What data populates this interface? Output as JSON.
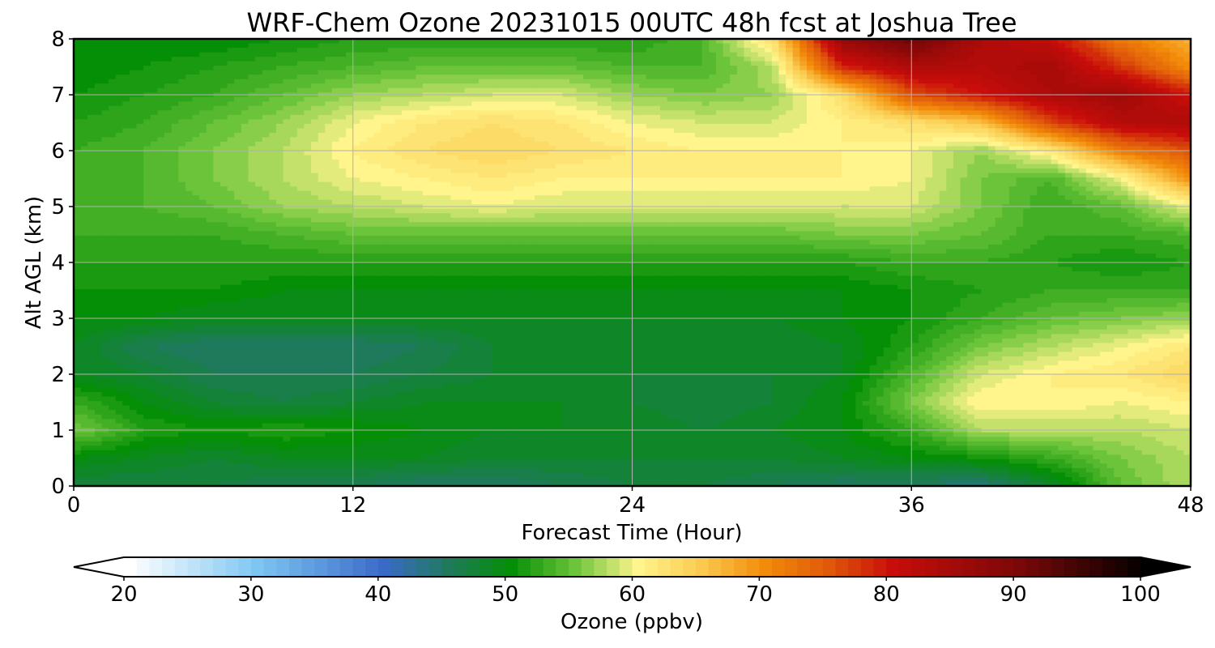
{
  "chart_data": {
    "type": "heatmap",
    "title": "WRF-Chem Ozone  20231015 00UTC 48h fcst at Joshua Tree",
    "xlabel": "Forecast Time (Hour)",
    "ylabel": "Alt AGL (km)",
    "xlim": [
      0,
      48
    ],
    "ylim": [
      0,
      8
    ],
    "xticks": [
      0,
      12,
      24,
      36,
      48
    ],
    "yticks": [
      0,
      1,
      2,
      3,
      4,
      5,
      6,
      7,
      8
    ],
    "grid": true,
    "x": [
      0,
      3,
      6,
      9,
      12,
      15,
      18,
      21,
      24,
      27,
      30,
      33,
      36,
      39,
      42,
      45,
      48
    ],
    "y": [
      0,
      0.5,
      1,
      1.5,
      2,
      2.5,
      3,
      3.5,
      4,
      4.5,
      5,
      5.5,
      6,
      6.5,
      7,
      7.5,
      8
    ],
    "z": [
      [
        47,
        47,
        47,
        46,
        46,
        45,
        45,
        46,
        47,
        47,
        46,
        45,
        45,
        44,
        48,
        55,
        58
      ],
      [
        50,
        49,
        48,
        49,
        49,
        49,
        48,
        48,
        48,
        48,
        48,
        49,
        50,
        51,
        53,
        56,
        58
      ],
      [
        56,
        52,
        51,
        52,
        51,
        50,
        49,
        49,
        49,
        48,
        49,
        50,
        53,
        58,
        58,
        58,
        59
      ],
      [
        53,
        50,
        48,
        47,
        48,
        49,
        49,
        49,
        48,
        47,
        48,
        50,
        56,
        61,
        61,
        60,
        61
      ],
      [
        49,
        48,
        46,
        46,
        46,
        47,
        48,
        49,
        48,
        48,
        48,
        49,
        54,
        59,
        61,
        62,
        64
      ],
      [
        49,
        46,
        45,
        45,
        45,
        46,
        48,
        49,
        48,
        48,
        48,
        49,
        52,
        56,
        58,
        60,
        62
      ],
      [
        50,
        50,
        49,
        49,
        49,
        49,
        49,
        49,
        49,
        49,
        49,
        50,
        51,
        53,
        55,
        56,
        57
      ],
      [
        51,
        51,
        51,
        50,
        50,
        50,
        50,
        50,
        50,
        50,
        50,
        50,
        51,
        52,
        53,
        53,
        53
      ],
      [
        52,
        52,
        52,
        52,
        52,
        52,
        52,
        52,
        52,
        52,
        52,
        52,
        53,
        53,
        52,
        51,
        52
      ],
      [
        53,
        53,
        53,
        54,
        55,
        55,
        55,
        55,
        55,
        55,
        55,
        56,
        56,
        55,
        53,
        53,
        54
      ],
      [
        53,
        54,
        55,
        57,
        58,
        59,
        60,
        59,
        59,
        59,
        59,
        59,
        59,
        56,
        53,
        55,
        60
      ],
      [
        53,
        54,
        56,
        58,
        60,
        61,
        62,
        61,
        61,
        61,
        61,
        61,
        60,
        56,
        54,
        60,
        70
      ],
      [
        53,
        54,
        56,
        58,
        61,
        63,
        64,
        63,
        62,
        61,
        61,
        61,
        60,
        57,
        62,
        72,
        76
      ],
      [
        52,
        53,
        55,
        57,
        60,
        62,
        63,
        62,
        60,
        59,
        59,
        61,
        63,
        66,
        77,
        83,
        84
      ],
      [
        51,
        52,
        53,
        55,
        57,
        58,
        59,
        59,
        57,
        56,
        57,
        63,
        76,
        80,
        84,
        86,
        80
      ],
      [
        50,
        51,
        52,
        53,
        54,
        55,
        55,
        55,
        54,
        54,
        58,
        79,
        84,
        83,
        85,
        78,
        70
      ],
      [
        50,
        50,
        50,
        51,
        52,
        52,
        52,
        52,
        52,
        54,
        63,
        87,
        92,
        84,
        81,
        72,
        67
      ]
    ]
  },
  "colorbar": {
    "label": "Ozone  (ppbv)",
    "min": 20,
    "max": 100,
    "step": 1,
    "ticks": [
      20,
      30,
      40,
      50,
      60,
      70,
      80,
      90,
      100
    ],
    "extend": "both",
    "colormap": [
      [
        20,
        "#ffffff"
      ],
      [
        30,
        "#7dc6f2"
      ],
      [
        40,
        "#3a6ac8"
      ],
      [
        45,
        "#1f7a5c"
      ],
      [
        50,
        "#058f06"
      ],
      [
        55,
        "#6cc43a"
      ],
      [
        60,
        "#fff58c"
      ],
      [
        65,
        "#fac94d"
      ],
      [
        70,
        "#f28a0a"
      ],
      [
        75,
        "#e0580a"
      ],
      [
        80,
        "#c80d0a"
      ],
      [
        90,
        "#7a0808"
      ],
      [
        100,
        "#000000"
      ]
    ]
  }
}
